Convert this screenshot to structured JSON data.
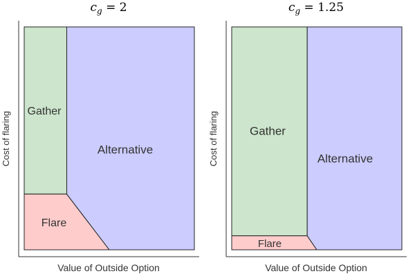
{
  "colors": {
    "gather": "#cce5cc",
    "flare": "#ffcccc",
    "alternative": "#ccccff"
  },
  "chart_data": [
    {
      "type": "area",
      "title": "c_g = 2",
      "title_parts": {
        "var": "c",
        "sub": "g",
        "rest": " = 2"
      },
      "xlabel": "Value of Outside Option",
      "ylabel": "Cost of flaring",
      "xlim": [
        0,
        1
      ],
      "ylim": [
        0,
        1
      ],
      "regions": [
        {
          "name": "Gather",
          "color_key": "gather",
          "polygon": [
            [
              0,
              0.25
            ],
            [
              0.25,
              0.25
            ],
            [
              0.25,
              1
            ],
            [
              0,
              1
            ]
          ]
        },
        {
          "name": "Flare",
          "color_key": "flare",
          "polygon": [
            [
              0,
              0
            ],
            [
              0.5,
              0
            ],
            [
              0.25,
              0.25
            ],
            [
              0,
              0.25
            ]
          ]
        },
        {
          "name": "Alternative",
          "color_key": "alternative",
          "polygon": [
            [
              0.25,
              0.25
            ],
            [
              0.25,
              1
            ],
            [
              1,
              1
            ],
            [
              1,
              0
            ],
            [
              0.5,
              0
            ]
          ]
        }
      ]
    },
    {
      "type": "area",
      "title": "c_g = 1.25",
      "title_parts": {
        "var": "c",
        "sub": "g",
        "rest": " = 1.25"
      },
      "xlabel": "Value of Outside Option",
      "ylabel": "Cost of flaring",
      "xlim": [
        0,
        1
      ],
      "ylim": [
        0,
        1
      ],
      "regions": [
        {
          "name": "Gather",
          "color_key": "gather",
          "polygon": [
            [
              0,
              0.0625
            ],
            [
              0.444,
              0.0625
            ],
            [
              0.444,
              1
            ],
            [
              0,
              1
            ]
          ]
        },
        {
          "name": "Flare",
          "color_key": "flare",
          "polygon": [
            [
              0,
              0
            ],
            [
              0.5,
              0
            ],
            [
              0.444,
              0.0625
            ],
            [
              0,
              0.0625
            ]
          ]
        },
        {
          "name": "Alternative",
          "color_key": "alternative",
          "polygon": [
            [
              0.444,
              0.0625
            ],
            [
              0.444,
              1
            ],
            [
              1,
              1
            ],
            [
              1,
              0
            ],
            [
              0.5,
              0
            ]
          ]
        }
      ]
    }
  ]
}
